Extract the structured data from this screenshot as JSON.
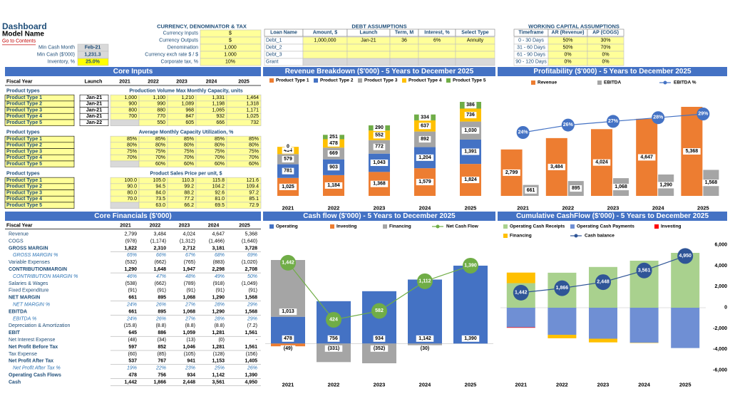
{
  "header": {
    "title": "Dashboard",
    "subtitle": "Model Name",
    "link": "Go to Contents"
  },
  "summary": [
    [
      "Min Cash Month",
      "Feb-21"
    ],
    [
      "Min Cash ($'000)",
      "1,231.3"
    ],
    [
      "Inventory, %",
      "25.0%"
    ]
  ],
  "currency": {
    "title": "CURRENCY, DENOMINATOR & TAX",
    "rows": [
      [
        "Currency Inputs",
        "$"
      ],
      [
        "Currency Outputs",
        "$"
      ],
      [
        "Denomination",
        "1,000"
      ],
      [
        "Currency exch rate $ / $",
        "1.000"
      ],
      [
        "Corporate tax, %",
        "10%"
      ]
    ]
  },
  "debt": {
    "title": "DEBT ASSUMPTIONS",
    "columns": [
      "Loan Name",
      "Amount, $",
      "Launch",
      "Term, M",
      "Interest, %",
      "Select Type"
    ],
    "rows": [
      [
        "Debt_1",
        "1,000,000",
        "Jan-21",
        "36",
        "6%",
        "Annuity"
      ],
      [
        "Debt_2"
      ],
      [
        "Debt_3"
      ],
      [
        "Grant"
      ]
    ]
  },
  "working_capital": {
    "title": "WORKING CAPITAL ASSUMPTIONS",
    "columns": [
      "Timeframe",
      "AR (Revenue)",
      "AP (COGS)"
    ],
    "rows": [
      [
        "0 - 30 Days",
        "50%",
        "30%"
      ],
      [
        "31 - 60 Days",
        "50%",
        "70%"
      ],
      [
        "61 - 90 Days",
        "0%",
        "0%"
      ],
      [
        "90 - 120 Days",
        "0%",
        "0%"
      ]
    ]
  },
  "core_inputs": {
    "title": "Core Inputs",
    "columns": [
      "Fiscal Year",
      "Launch",
      "2021",
      "2022",
      "2023",
      "2024",
      "2025"
    ],
    "sections": [
      {
        "label": "Product types",
        "title": "Production Volume Max Monthly Capacity, units",
        "rows": [
          [
            "Product Type 1",
            "Jan-21",
            "1,000",
            "1,100",
            "1,210",
            "1,331",
            "1,464"
          ],
          [
            "Product Type 2",
            "Jan-21",
            "900",
            "990",
            "1,089",
            "1,198",
            "1,318"
          ],
          [
            "Product Type 3",
            "Jan-21",
            "800",
            "880",
            "968",
            "1,065",
            "1,171"
          ],
          [
            "Product Type 4",
            "Jan-21",
            "700",
            "770",
            "847",
            "932",
            "1,025"
          ],
          [
            "Product Type 5",
            "Jan-22",
            null,
            "550",
            "605",
            "666",
            "732"
          ]
        ]
      },
      {
        "label": "Product types",
        "title": "Average Monthly Capacity Utilization, %",
        "rows": [
          [
            "Product Type 1",
            null,
            "85%",
            "85%",
            "85%",
            "85%",
            "85%"
          ],
          [
            "Product Type 2",
            null,
            "80%",
            "80%",
            "80%",
            "80%",
            "80%"
          ],
          [
            "Product Type 3",
            null,
            "75%",
            "75%",
            "75%",
            "75%",
            "75%"
          ],
          [
            "Product Type 4",
            null,
            "70%",
            "70%",
            "70%",
            "70%",
            "70%"
          ],
          [
            "Product Type 5",
            null,
            null,
            "60%",
            "60%",
            "60%",
            "60%"
          ]
        ]
      },
      {
        "label": "Product types",
        "title": "Product Sales Price per unit, $",
        "rows": [
          [
            "Product Type 1",
            null,
            "100.0",
            "105.0",
            "110.3",
            "115.8",
            "121.6"
          ],
          [
            "Product Type 2",
            null,
            "90.0",
            "94.5",
            "99.2",
            "104.2",
            "109.4"
          ],
          [
            "Product Type 3",
            null,
            "80.0",
            "84.0",
            "88.2",
            "92.6",
            "97.2"
          ],
          [
            "Product Type 4",
            null,
            "70.0",
            "73.5",
            "77.2",
            "81.0",
            "85.1"
          ],
          [
            "Product Type 5",
            null,
            null,
            "63.0",
            "66.2",
            "69.5",
            "72.9"
          ]
        ]
      }
    ]
  },
  "core_financials": {
    "title": "Core Financials ($'000)",
    "columns": [
      "Fiscal Year",
      "2021",
      "2022",
      "2023",
      "2024",
      "2025"
    ],
    "rows": [
      [
        "Revenue",
        "2,799",
        "3,484",
        "4,024",
        "4,647",
        "5,368"
      ],
      [
        "COGS",
        "(978)",
        "(1,174)",
        "(1,312)",
        "(1,466)",
        "(1,640)"
      ],
      [
        "GROSS MARGIN",
        "1,822",
        "2,310",
        "2,712",
        "3,181",
        "3,728"
      ],
      [
        "GROSS MARGIN %",
        "65%",
        "66%",
        "67%",
        "68%",
        "69%"
      ],
      [
        "Variable Expenses",
        "(532)",
        "(662)",
        "(765)",
        "(883)",
        "(1,020)"
      ],
      [
        "CONTRIBUTIONMARGIN",
        "1,290",
        "1,648",
        "1,947",
        "2,298",
        "2,708"
      ],
      [
        "CONTRIBUTION MARGIN %",
        "46%",
        "47%",
        "48%",
        "49%",
        "50%"
      ],
      [
        "Salaries & Wages",
        "(538)",
        "(662)",
        "(789)",
        "(918)",
        "(1,049)"
      ],
      [
        "Fixed Expenditure",
        "(91)",
        "(91)",
        "(91)",
        "(91)",
        "(91)"
      ],
      [
        "NET MARGIN",
        "661",
        "895",
        "1,068",
        "1,290",
        "1,568"
      ],
      [
        "NET MARGIN %",
        "24%",
        "26%",
        "27%",
        "28%",
        "29%"
      ],
      [
        "EBITDA",
        "661",
        "895",
        "1,068",
        "1,290",
        "1,568"
      ],
      [
        "EBITDA %",
        "24%",
        "26%",
        "27%",
        "28%",
        "29%"
      ],
      [
        "Depreciation & Amortization",
        "(15.8)",
        "(8.8)",
        "(8.8)",
        "(8.8)",
        "(7.2)"
      ],
      [
        "EBIT",
        "645",
        "886",
        "1,059",
        "1,281",
        "1,561"
      ],
      [
        "Net Interest Expense",
        "(48)",
        "(34)",
        "(13)",
        "(0)",
        "-"
      ],
      [
        "Net Profit Before Tax",
        "597",
        "852",
        "1,046",
        "1,281",
        "1,561"
      ],
      [
        "Tax Expense",
        "(60)",
        "(85)",
        "(105)",
        "(128)",
        "(156)"
      ],
      [
        "Net Profit After Tax",
        "537",
        "767",
        "941",
        "1,153",
        "1,405"
      ],
      [
        "Net Profit After Tax %",
        "19%",
        "22%",
        "23%",
        "25%",
        "26%"
      ],
      [
        "Operating Cash Flows",
        "478",
        "756",
        "934",
        "1,142",
        "1,390"
      ],
      [
        "Cash",
        "1,442",
        "1,866",
        "2,448",
        "3,561",
        "4,950"
      ]
    ]
  },
  "chart_data": [
    {
      "type": "bar",
      "title": "Revenue Breakdown ($'000) - 5 Years to December 2025",
      "stacked": true,
      "categories": [
        "2021",
        "2022",
        "2023",
        "2024",
        "2025"
      ],
      "series": [
        {
          "name": "Product Type 1",
          "color": "#ed7d31",
          "values": [
            1025,
            1184,
            1368,
            1579,
            1824
          ],
          "value_labels": [
            "1,025",
            "1,184",
            "1,368",
            "1,579",
            "1,824"
          ]
        },
        {
          "name": "Product Type 2",
          "color": "#4472c4",
          "values": [
            781,
            903,
            1043,
            1204,
            1391
          ],
          "value_labels": [
            "781",
            "903",
            "1,043",
            "1,204",
            "1,391"
          ]
        },
        {
          "name": "Product Type 3",
          "color": "#a5a5a5",
          "values": [
            579,
            669,
            772,
            892,
            1030
          ],
          "value_labels": [
            "579",
            "669",
            "772",
            "892",
            "1,030"
          ]
        },
        {
          "name": "Product Type 4",
          "color": "#ffc000",
          "values": [
            414,
            478,
            552,
            637,
            736
          ]
        },
        {
          "name": "Product Type 5",
          "color": "#70ad47",
          "values": [
            0,
            251,
            290,
            334,
            386
          ]
        }
      ]
    },
    {
      "type": "bar",
      "title": "Profitability ($'000) - 5 Years to December 2025",
      "stacked": false,
      "categories": [
        "2021",
        "2022",
        "2023",
        "2024",
        "2025"
      ],
      "series": [
        {
          "name": "Revenue",
          "color": "#ed7d31",
          "values": [
            2799,
            3484,
            4024,
            4647,
            5368
          ],
          "value_labels": [
            "2,799",
            "3,484",
            "4,024",
            "4,647",
            "5,368"
          ]
        },
        {
          "name": "EBITDA",
          "color": "#a5a5a5",
          "values": [
            661,
            895,
            1068,
            1290,
            1568
          ],
          "value_labels": [
            "661",
            "895",
            "1,068",
            "1,290",
            "1,568"
          ]
        },
        {
          "name": "EBITDA %",
          "type": "line",
          "axis": "y2",
          "color": "#4472c4",
          "values": [
            24,
            26,
            27,
            28,
            29
          ],
          "value_labels": [
            "24%",
            "26%",
            "27%",
            "28%",
            "29%"
          ]
        }
      ]
    },
    {
      "type": "bar",
      "title": "Cash flow ($'000) - 5 Years to December 2025",
      "stacked": true,
      "categories": [
        "2021",
        "2022",
        "2023",
        "2024",
        "2025"
      ],
      "series": [
        {
          "name": "Operating",
          "color": "#4472c4",
          "values": [
            478,
            756,
            934,
            1142,
            1390
          ],
          "value_labels": [
            "478",
            "756",
            "934",
            "1,142",
            "1,390"
          ]
        },
        {
          "name": "Investing",
          "color": "#ed7d31",
          "values": [
            -49,
            0,
            0,
            0,
            0
          ],
          "value_labels": [
            "(49)",
            null,
            null,
            null,
            null
          ]
        },
        {
          "name": "Financing",
          "color": "#a5a5a5",
          "values": [
            1013,
            -331,
            -352,
            -30,
            0
          ],
          "value_labels": [
            "1,013",
            "(331)",
            "(352)",
            "(30)",
            null
          ]
        },
        {
          "name": "Net Cash Flow",
          "type": "line",
          "color": "#70ad47",
          "values": [
            1442,
            424,
            582,
            1112,
            1390
          ],
          "value_labels": [
            "1,442",
            "424",
            "582",
            "1,112",
            "1,390"
          ]
        }
      ]
    },
    {
      "type": "bar",
      "title": "Cumulative CashFlow ($'000) - 5 Years to December 2025",
      "stacked": true,
      "categories": [
        "2021",
        "2022",
        "2023",
        "2024",
        "2025"
      ],
      "ylim": [
        -6000,
        6000
      ],
      "yticks": [
        {
          "value": 6000,
          "label": "6,000"
        },
        {
          "value": 4000,
          "label": "4,000"
        },
        {
          "value": 2000,
          "label": "2,000"
        },
        0,
        {
          "value": -2000,
          "label": "-2,000"
        },
        {
          "value": -4000,
          "label": "-4,000"
        },
        {
          "value": -6000,
          "label": "-6,000"
        }
      ],
      "series": [
        {
          "name": "Operating Cash Receipts",
          "color": "#a9d18e",
          "values": [
            2350,
            3350,
            3900,
            4500,
            5250
          ]
        },
        {
          "name": "Operating Cash Payments",
          "color": "#6f8fd4",
          "values": [
            -1872,
            -2594,
            -2966,
            -3358,
            -3860
          ]
        },
        {
          "name": "Investing",
          "color": "#ff0000",
          "values": [
            -49,
            0,
            0,
            0,
            0
          ]
        },
        {
          "name": "Financing",
          "color": "#ffc000",
          "values": [
            1013,
            -331,
            -352,
            -30,
            0
          ]
        },
        {
          "name": "Cash balance",
          "type": "line",
          "color": "#2f5597",
          "values": [
            1442,
            1866,
            2448,
            3561,
            4950
          ],
          "value_labels": [
            "1,442",
            "1,866",
            "2,448",
            "3,561",
            "4,950"
          ]
        }
      ]
    }
  ]
}
